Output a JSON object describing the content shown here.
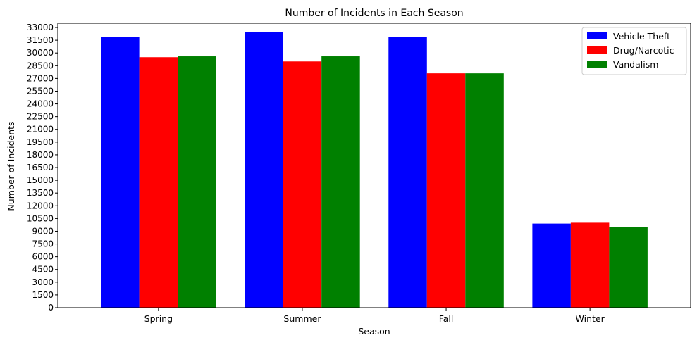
{
  "chart_data": {
    "type": "bar",
    "title": "Number of Incidents in Each Season",
    "xlabel": "Season",
    "ylabel": "Number of Incidents",
    "categories": [
      "Spring",
      "Summer",
      "Fall",
      "Winter"
    ],
    "series": [
      {
        "name": "Vehicle Theft",
        "color": "#0000ff",
        "values": [
          31900,
          32500,
          31900,
          9900
        ]
      },
      {
        "name": "Drug/Narcotic",
        "color": "#ff0000",
        "values": [
          29500,
          29000,
          27600,
          10000
        ]
      },
      {
        "name": "Vandalism",
        "color": "#008000",
        "values": [
          29600,
          29600,
          27600,
          9500
        ]
      }
    ],
    "ylim": [
      0,
      33500
    ],
    "yticks": [
      0,
      1500,
      3000,
      4500,
      6000,
      7500,
      9000,
      10500,
      12000,
      13500,
      15000,
      16500,
      18000,
      19500,
      21000,
      22500,
      24000,
      25500,
      27000,
      28500,
      30000,
      31500,
      33000
    ],
    "grid": false,
    "legend": "top-right"
  }
}
